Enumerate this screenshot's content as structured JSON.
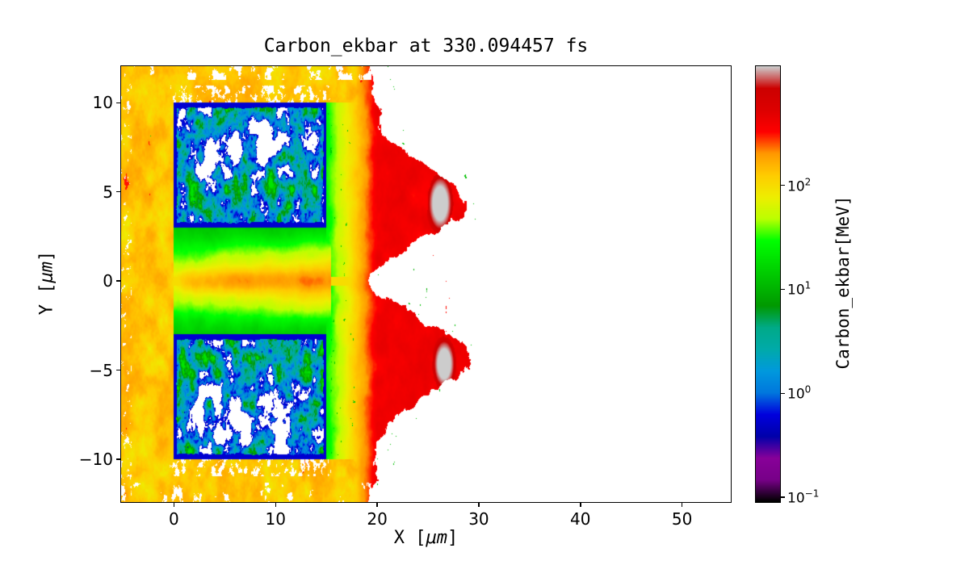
{
  "labels": {
    "x_pre": "X [",
    "y_pre": "Y [",
    "unit": "μm",
    "unit_close": "]"
  },
  "chart_data": {
    "type": "heatmap",
    "title": "Carbon_ekbar at 330.094457 fs",
    "xlabel": "X [μm]",
    "ylabel": "Y [μm]",
    "xlim": [
      -5.2,
      54.8
    ],
    "ylim": [
      -12.4,
      12.05
    ],
    "grid": false,
    "background": "#ffffff",
    "x_ticks": [
      {
        "value": 0,
        "label": "0"
      },
      {
        "value": 10,
        "label": "10"
      },
      {
        "value": 20,
        "label": "20"
      },
      {
        "value": 30,
        "label": "30"
      },
      {
        "value": 40,
        "label": "40"
      },
      {
        "value": 50,
        "label": "50"
      }
    ],
    "y_ticks": [
      {
        "value": -10,
        "label": "−10"
      },
      {
        "value": -5,
        "label": "−5"
      },
      {
        "value": 0,
        "label": "0"
      },
      {
        "value": 5,
        "label": "5"
      },
      {
        "value": 10,
        "label": "10"
      }
    ],
    "colorbar": {
      "label": "Carbon_ekbar[MeV]",
      "scale": "log",
      "vmin": 0.09,
      "vmax": 1400,
      "ticks": [
        {
          "value": 0.1,
          "mantissa": "10",
          "exponent": "−1"
        },
        {
          "value": 1,
          "mantissa": "10",
          "exponent": "0"
        },
        {
          "value": 10,
          "mantissa": "10",
          "exponent": "1"
        },
        {
          "value": 100,
          "mantissa": "10",
          "exponent": "2"
        }
      ]
    },
    "colormap": {
      "name": "nipy_spectral",
      "stops": [
        [
          0.0,
          "#000000"
        ],
        [
          0.05,
          "#770088"
        ],
        [
          0.1,
          "#880099"
        ],
        [
          0.15,
          "#0000AA"
        ],
        [
          0.2,
          "#0000DD"
        ],
        [
          0.25,
          "#0077DD"
        ],
        [
          0.3,
          "#0099DD"
        ],
        [
          0.35,
          "#00AAAA"
        ],
        [
          0.4,
          "#00AA88"
        ],
        [
          0.45,
          "#009900"
        ],
        [
          0.5,
          "#00BB00"
        ],
        [
          0.55,
          "#00DD00"
        ],
        [
          0.6,
          "#00FF00"
        ],
        [
          0.65,
          "#BBFF00"
        ],
        [
          0.7,
          "#EEEE00"
        ],
        [
          0.75,
          "#FFCC00"
        ],
        [
          0.8,
          "#FF9900"
        ],
        [
          0.85,
          "#FF0000"
        ],
        [
          0.9,
          "#DD0000"
        ],
        [
          0.95,
          "#CC0000"
        ],
        [
          1.0,
          "#CCCCCC"
        ]
      ]
    },
    "features": {
      "description": "Carbon average kinetic energy map at t = 330.094457 fs: two structured target slabs (x 0-15 um, y 3-10 um and y -10 to -3 um) with ~0.5 MeV dark-blue border sheaths and mottled 0.5-20 MeV interiors containing empty (white) cavities; a speckled 55-210 MeV orange halo on the left and above/below; an on-axis ~100 MeV channel near y=0; an energetic red expansion front (~300-400 MeV) from x~17 to a ragged edge near x~20-30 um, bulging to x~29 at y~±4.5 with ~1400 MeV light-gray hotspots near (26, ±4.5) um; vacuum (white) beyond x~30.",
      "blocks": [
        {
          "x": [
            0,
            15
          ],
          "y": [
            3,
            10
          ]
        },
        {
          "x": [
            0,
            15
          ],
          "y": [
            -10,
            -3
          ]
        }
      ],
      "block_border_mev": 0.55,
      "block_interior_mev": [
        0.5,
        20
      ],
      "halo_mev": [
        55,
        210
      ],
      "channel": {
        "halfwidth": 0.25,
        "x_extent": [
          -2,
          20
        ],
        "mev": 100
      },
      "front_cap_mev": 400,
      "hotspots": [
        {
          "x": 26.2,
          "y": 4.35,
          "rx": 1.3,
          "ry": 1.7,
          "mev": 1400
        },
        {
          "x": 26.6,
          "y": -4.65,
          "rx": 1.15,
          "ry": 1.5,
          "mev": 1400
        }
      ],
      "right_edge": {
        "base": 20.3,
        "bulge": 8.8,
        "bulge_center": 4.4,
        "bulge_width": 2.5,
        "notch_depth": 2.2,
        "notch_width": 0.9
      }
    }
  }
}
